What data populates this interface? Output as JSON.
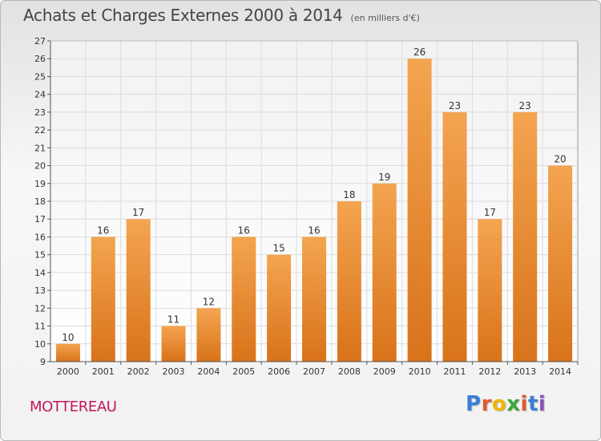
{
  "title": "Achats et Charges Externes 2000 à 2014",
  "unit": "(en milliers d'€)",
  "commune": "MOTTEREAU",
  "logo": {
    "letters": [
      "P",
      "r",
      "o",
      "x",
      "i",
      "t",
      "i"
    ],
    "colors": [
      "#3a7fd5",
      "#e05a2b",
      "#f0b400",
      "#3aa63a",
      "#e05a2b",
      "#3a7fd5",
      "#8a4fbf"
    ]
  },
  "chart_data": {
    "type": "bar",
    "categories": [
      "2000",
      "2001",
      "2002",
      "2003",
      "2004",
      "2005",
      "2006",
      "2007",
      "2008",
      "2009",
      "2010",
      "2011",
      "2012",
      "2013",
      "2014"
    ],
    "values": [
      10,
      16,
      17,
      11,
      12,
      16,
      15,
      16,
      18,
      19,
      26,
      23,
      17,
      23,
      20
    ],
    "title": "Achats et Charges Externes 2000 à 2014",
    "ylim": [
      9,
      27
    ],
    "yticks": [
      9,
      10,
      11,
      12,
      13,
      14,
      15,
      16,
      17,
      18,
      19,
      20,
      21,
      22,
      23,
      24,
      25,
      26,
      27
    ],
    "grid": true,
    "bar_color_top": "#f4a450",
    "bar_color_bottom": "#d8731a"
  }
}
